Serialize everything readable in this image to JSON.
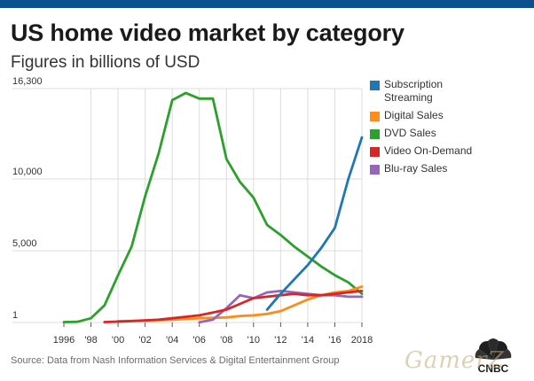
{
  "header": {
    "title": "US home video market by category",
    "subtitle": "Figures in billions of USD"
  },
  "footer": {
    "source": "Source: Data from Nash Information Services & Digital Entertainment Group",
    "logo_text": "CNBC",
    "watermark": "GamerZ"
  },
  "colors": {
    "top_bar": "#0c4f8e",
    "grid": "#dddddd"
  },
  "chart_data": {
    "type": "line",
    "title": "US home video market by category",
    "subtitle": "Figures in billions of USD",
    "xlabel": "",
    "ylabel": "",
    "xlim": [
      1996,
      2018
    ],
    "ylim": [
      1,
      16300
    ],
    "y_ticks": [
      {
        "value": 1,
        "label": "1"
      },
      {
        "value": 5000,
        "label": "5,000"
      },
      {
        "value": 10000,
        "label": "10,000"
      },
      {
        "value": 16300,
        "label": "16,300"
      }
    ],
    "x_ticks": [
      {
        "value": 1996,
        "label": "1996"
      },
      {
        "value": 1998,
        "label": "'98"
      },
      {
        "value": 2000,
        "label": "'00"
      },
      {
        "value": 2002,
        "label": "'02"
      },
      {
        "value": 2004,
        "label": "'04"
      },
      {
        "value": 2006,
        "label": "'06"
      },
      {
        "value": 2008,
        "label": "'08"
      },
      {
        "value": 2010,
        "label": "'10"
      },
      {
        "value": 2012,
        "label": "'12"
      },
      {
        "value": 2014,
        "label": "'14"
      },
      {
        "value": 2016,
        "label": "'16"
      },
      {
        "value": 2018,
        "label": "2018"
      }
    ],
    "grid": true,
    "legend_position": "right",
    "series": [
      {
        "name": "Subscription Streaming",
        "color": "#1f77b4",
        "x": [
          2011,
          2012,
          2013,
          2014,
          2015,
          2016,
          2017,
          2018
        ],
        "values": [
          900,
          2000,
          3000,
          4000,
          5200,
          6600,
          10000,
          12900
        ]
      },
      {
        "name": "Digital Sales",
        "color": "#ff8c1a",
        "x": [
          2000,
          2001,
          2002,
          2003,
          2004,
          2005,
          2006,
          2007,
          2008,
          2009,
          2010,
          2011,
          2012,
          2013,
          2014,
          2015,
          2016,
          2017,
          2018
        ],
        "values": [
          100,
          120,
          150,
          170,
          200,
          250,
          300,
          330,
          350,
          450,
          500,
          600,
          800,
          1200,
          1600,
          1900,
          2100,
          2200,
          2500
        ]
      },
      {
        "name": "DVD Sales",
        "color": "#2ca02c",
        "x": [
          1996,
          1997,
          1998,
          1999,
          2000,
          2001,
          2002,
          2003,
          2004,
          2005,
          2006,
          2007,
          2008,
          2009,
          2010,
          2011,
          2012,
          2013,
          2014,
          2015,
          2016,
          2017,
          2018
        ],
        "values": [
          30,
          50,
          300,
          1200,
          3300,
          5300,
          8800,
          11800,
          15500,
          16000,
          15600,
          15600,
          11400,
          9800,
          8700,
          6800,
          6100,
          5300,
          4600,
          3900,
          3300,
          2800,
          2000
        ]
      },
      {
        "name": "Video On-Demand",
        "color": "#d62728",
        "x": [
          1999,
          2000,
          2001,
          2002,
          2003,
          2004,
          2005,
          2006,
          2007,
          2008,
          2009,
          2010,
          2011,
          2012,
          2013,
          2014,
          2015,
          2016,
          2017,
          2018
        ],
        "values": [
          30,
          60,
          100,
          150,
          200,
          300,
          400,
          500,
          700,
          900,
          1300,
          1700,
          1800,
          1900,
          2000,
          1900,
          1900,
          2000,
          2100,
          2200
        ]
      },
      {
        "name": "Blu-ray Sales",
        "color": "#9467bd",
        "x": [
          2006,
          2007,
          2008,
          2009,
          2010,
          2011,
          2012,
          2013,
          2014,
          2015,
          2016,
          2017,
          2018
        ],
        "values": [
          20,
          200,
          1000,
          1900,
          1700,
          2100,
          2200,
          2100,
          2000,
          1900,
          1900,
          1800,
          1800
        ]
      }
    ]
  }
}
